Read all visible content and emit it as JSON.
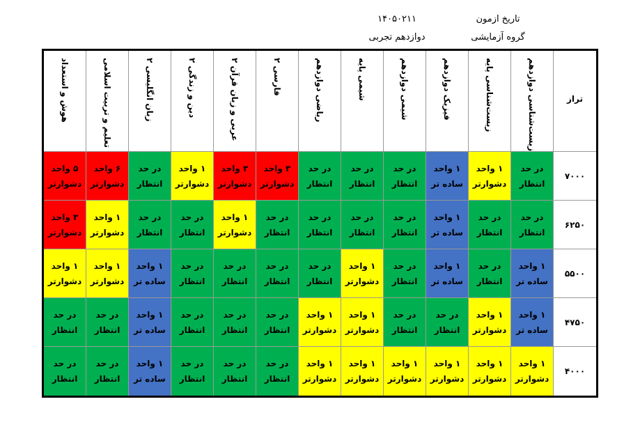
{
  "header": {
    "exam_date_label": "تاریخ ازمون",
    "exam_date": "۱۴۰۵۰۲۱۱",
    "group_label": "گروه آزمایشی",
    "group": "دوازدهم تجربی"
  },
  "table": {
    "headers": [
      "تراز",
      "زیست‌شناسی دوازدهم",
      "زیست‌شناسی پایه",
      "فیزیک دوازدهم",
      "شیمی دوازدهم",
      "شیمی پایه",
      "ریاضی دوازدهم",
      "فارسی ۲",
      "عربی و زبان قرآن ۲",
      "دین و زندگی ۲",
      "زبان انگلیسی ۲",
      "تعلیم و تربیت اسلامی",
      "هوش و استعداد"
    ],
    "rows": [
      {
        "score": "۷۰۰۰",
        "cells": [
          {
            "lines": [
              "در حد",
              "انتظار"
            ],
            "color": "#00b050"
          },
          {
            "lines": [
              "۱ واحد",
              "دشوارتر"
            ],
            "color": "#ffff00"
          },
          {
            "lines": [
              "۱ واحد",
              "ساده تر"
            ],
            "color": "#4472c4"
          },
          {
            "lines": [
              "در حد",
              "انتظار"
            ],
            "color": "#00b050"
          },
          {
            "lines": [
              "در حد",
              "انتظار"
            ],
            "color": "#00b050"
          },
          {
            "lines": [
              "در حد",
              "انتظار"
            ],
            "color": "#00b050"
          },
          {
            "lines": [
              "۳ واحد",
              "دشوارتر"
            ],
            "color": "#ff0000"
          },
          {
            "lines": [
              "۳ واحد",
              "دشوارتر"
            ],
            "color": "#ff0000"
          },
          {
            "lines": [
              "۱ واحد",
              "دشوارتر"
            ],
            "color": "#ffff00"
          },
          {
            "lines": [
              "در حد",
              "انتظار"
            ],
            "color": "#00b050"
          },
          {
            "lines": [
              "۶ واحد",
              "دشوارتر"
            ],
            "color": "#ff0000"
          },
          {
            "lines": [
              "۵ واحد",
              "دشوارتر"
            ],
            "color": "#ff0000"
          }
        ]
      },
      {
        "score": "۶۲۵۰",
        "cells": [
          {
            "lines": [
              "در حد",
              "انتظار"
            ],
            "color": "#00b050"
          },
          {
            "lines": [
              "در حد",
              "انتظار"
            ],
            "color": "#00b050"
          },
          {
            "lines": [
              "۱ واحد",
              "ساده تر"
            ],
            "color": "#4472c4"
          },
          {
            "lines": [
              "در حد",
              "انتظار"
            ],
            "color": "#00b050"
          },
          {
            "lines": [
              "در حد",
              "انتظار"
            ],
            "color": "#00b050"
          },
          {
            "lines": [
              "در حد",
              "انتظار"
            ],
            "color": "#00b050"
          },
          {
            "lines": [
              "در حد",
              "انتظار"
            ],
            "color": "#00b050"
          },
          {
            "lines": [
              "۱ واحد",
              "دشوارتر"
            ],
            "color": "#ffff00"
          },
          {
            "lines": [
              "در حد",
              "انتظار"
            ],
            "color": "#00b050"
          },
          {
            "lines": [
              "در حد",
              "انتظار"
            ],
            "color": "#00b050"
          },
          {
            "lines": [
              "۱ واحد",
              "دشوارتر"
            ],
            "color": "#ffff00"
          },
          {
            "lines": [
              "۳ واحد",
              "دشوارتر"
            ],
            "color": "#ff0000"
          }
        ]
      },
      {
        "score": "۵۵۰۰",
        "cells": [
          {
            "lines": [
              "۱ واحد",
              "ساده تر"
            ],
            "color": "#4472c4"
          },
          {
            "lines": [
              "در حد",
              "انتظار"
            ],
            "color": "#00b050"
          },
          {
            "lines": [
              "۱ واحد",
              "ساده تر"
            ],
            "color": "#4472c4"
          },
          {
            "lines": [
              "در حد",
              "انتظار"
            ],
            "color": "#00b050"
          },
          {
            "lines": [
              "۱ واحد",
              "دشوارتر"
            ],
            "color": "#ffff00"
          },
          {
            "lines": [
              "در حد",
              "انتظار"
            ],
            "color": "#00b050"
          },
          {
            "lines": [
              "در حد",
              "انتظار"
            ],
            "color": "#00b050"
          },
          {
            "lines": [
              "در حد",
              "انتظار"
            ],
            "color": "#00b050"
          },
          {
            "lines": [
              "در حد",
              "انتظار"
            ],
            "color": "#00b050"
          },
          {
            "lines": [
              "۱ واحد",
              "ساده تر"
            ],
            "color": "#4472c4"
          },
          {
            "lines": [
              "۱ واحد",
              "دشوارتر"
            ],
            "color": "#ffff00"
          },
          {
            "lines": [
              "۱ واحد",
              "دشوارتر"
            ],
            "color": "#ffff00"
          }
        ]
      },
      {
        "score": "۴۷۵۰",
        "cells": [
          {
            "lines": [
              "۱ واحد",
              "ساده تر"
            ],
            "color": "#4472c4"
          },
          {
            "lines": [
              "۱ واحد",
              "دشوارتر"
            ],
            "color": "#ffff00"
          },
          {
            "lines": [
              "در حد",
              "انتظار"
            ],
            "color": "#00b050"
          },
          {
            "lines": [
              "در حد",
              "انتظار"
            ],
            "color": "#00b050"
          },
          {
            "lines": [
              "۱ واحد",
              "دشوارتر"
            ],
            "color": "#ffff00"
          },
          {
            "lines": [
              "۱ واحد",
              "دشوارتر"
            ],
            "color": "#ffff00"
          },
          {
            "lines": [
              "در حد",
              "انتظار"
            ],
            "color": "#00b050"
          },
          {
            "lines": [
              "در حد",
              "انتظار"
            ],
            "color": "#00b050"
          },
          {
            "lines": [
              "در حد",
              "انتظار"
            ],
            "color": "#00b050"
          },
          {
            "lines": [
              "۱ واحد",
              "ساده تر"
            ],
            "color": "#4472c4"
          },
          {
            "lines": [
              "در حد",
              "انتظار"
            ],
            "color": "#00b050"
          },
          {
            "lines": [
              "در حد",
              "انتظار"
            ],
            "color": "#00b050"
          }
        ]
      },
      {
        "score": "۴۰۰۰",
        "cells": [
          {
            "lines": [
              "۱ واحد",
              "دشوارتر"
            ],
            "color": "#ffff00"
          },
          {
            "lines": [
              "۱ واحد",
              "دشوارتر"
            ],
            "color": "#ffff00"
          },
          {
            "lines": [
              "۱ واحد",
              "دشوارتر"
            ],
            "color": "#ffff00"
          },
          {
            "lines": [
              "۱ واحد",
              "دشوارتر"
            ],
            "color": "#ffff00"
          },
          {
            "lines": [
              "۱ واحد",
              "دشوارتر"
            ],
            "color": "#ffff00"
          },
          {
            "lines": [
              "۱ واحد",
              "دشوارتر"
            ],
            "color": "#ffff00"
          },
          {
            "lines": [
              "در حد",
              "انتظار"
            ],
            "color": "#00b050"
          },
          {
            "lines": [
              "در حد",
              "انتظار"
            ],
            "color": "#00b050"
          },
          {
            "lines": [
              "در حد",
              "انتظار"
            ],
            "color": "#00b050"
          },
          {
            "lines": [
              "۱ واحد",
              "ساده تر"
            ],
            "color": "#4472c4"
          },
          {
            "lines": [
              "در حد",
              "انتظار"
            ],
            "color": "#00b050"
          },
          {
            "lines": [
              "در حد",
              "انتظار"
            ],
            "color": "#00b050"
          }
        ]
      }
    ]
  }
}
